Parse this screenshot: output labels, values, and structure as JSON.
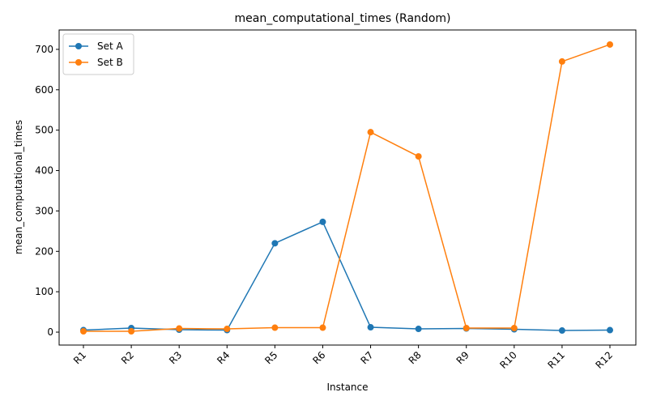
{
  "chart_data": {
    "type": "line",
    "title": "mean_computational_times  (Random)",
    "xlabel": "Instance",
    "ylabel": "mean_computational_times",
    "categories": [
      "R1",
      "R2",
      "R3",
      "R4",
      "R5",
      "R6",
      "R7",
      "R8",
      "R9",
      "R10",
      "R11",
      "R12"
    ],
    "ylim": [
      -32,
      748
    ],
    "yticks": [
      0,
      100,
      200,
      300,
      400,
      500,
      600,
      700
    ],
    "grid": false,
    "legend_position": "top-left",
    "series": [
      {
        "name": "Set A",
        "color": "#1f77b4",
        "marker": "circle",
        "values": [
          5,
          10,
          6,
          5,
          220,
          273,
          12,
          8,
          9,
          7,
          4,
          5
        ]
      },
      {
        "name": "Set B",
        "color": "#ff7f0e",
        "marker": "circle",
        "values": [
          2,
          2,
          9,
          8,
          11,
          11,
          495,
          435,
          10,
          10,
          670,
          712
        ]
      }
    ]
  }
}
